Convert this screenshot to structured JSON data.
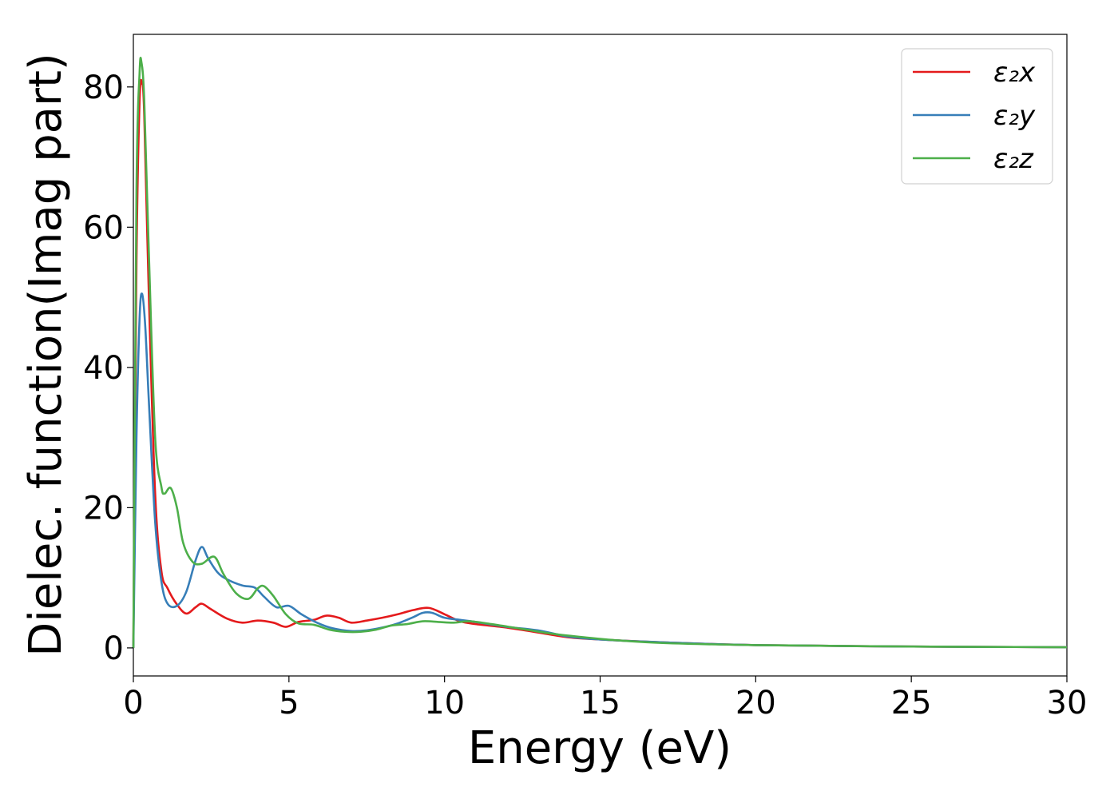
{
  "chart_data": {
    "type": "line",
    "title": "",
    "xlabel": "Energy (eV)",
    "ylabel": "Dielec. function(Imag part)",
    "xlim": [
      0,
      30
    ],
    "ylim": [
      -4,
      87.5
    ],
    "xticks": [
      0,
      5,
      10,
      15,
      20,
      25,
      30
    ],
    "yticks": [
      0,
      20,
      40,
      60,
      80
    ],
    "grid": false,
    "legend": "top-right",
    "series": [
      {
        "name": "ε₂x",
        "color": "#e41a1c",
        "x": [
          0,
          0.1,
          0.2,
          0.28,
          0.35,
          0.5,
          0.7,
          0.9,
          1.1,
          1.4,
          1.7,
          2.0,
          2.2,
          2.5,
          3.0,
          3.5,
          4.0,
          4.5,
          4.9,
          5.3,
          5.8,
          6.2,
          6.6,
          7.0,
          7.5,
          8.0,
          8.5,
          9.0,
          9.5,
          10.0,
          10.5,
          11.0,
          12.0,
          13.0,
          14.0,
          15.0,
          17.0,
          20.0,
          25.0,
          30.0
        ],
        "values": [
          0,
          55,
          78,
          80.5,
          76,
          50,
          22,
          11,
          8.5,
          6.2,
          4.9,
          5.8,
          6.3,
          5.5,
          4.2,
          3.6,
          3.9,
          3.6,
          3.0,
          3.7,
          4.0,
          4.6,
          4.3,
          3.6,
          3.9,
          4.3,
          4.8,
          5.4,
          5.7,
          4.8,
          3.8,
          3.4,
          2.9,
          2.2,
          1.5,
          1.2,
          0.8,
          0.4,
          0.2,
          0.1
        ]
      },
      {
        "name": "ε₂y",
        "color": "#377eb8",
        "x": [
          0,
          0.1,
          0.2,
          0.28,
          0.38,
          0.5,
          0.7,
          0.9,
          1.1,
          1.4,
          1.7,
          2.0,
          2.2,
          2.4,
          2.7,
          3.0,
          3.5,
          3.9,
          4.2,
          4.6,
          5.0,
          5.4,
          5.9,
          6.4,
          7.0,
          7.5,
          8.0,
          8.5,
          9.0,
          9.3,
          9.6,
          10.0,
          10.5,
          11.0,
          12.0,
          13.0,
          14.0,
          15.0,
          17.0,
          20.0,
          25.0,
          30.0
        ],
        "values": [
          0,
          30,
          47,
          50.5,
          46,
          35,
          18,
          9.5,
          6.3,
          6.0,
          8.0,
          12.5,
          14.4,
          12.8,
          10.8,
          9.8,
          8.9,
          8.6,
          7.3,
          5.8,
          6.0,
          4.8,
          3.6,
          2.8,
          2.4,
          2.5,
          2.9,
          3.5,
          4.4,
          5.0,
          5.0,
          4.3,
          4.0,
          3.7,
          3.0,
          2.5,
          1.6,
          1.2,
          0.8,
          0.4,
          0.2,
          0.1
        ]
      },
      {
        "name": "ε₂z",
        "color": "#4daf4a",
        "x": [
          0,
          0.1,
          0.2,
          0.26,
          0.35,
          0.5,
          0.7,
          0.9,
          1.0,
          1.2,
          1.4,
          1.6,
          1.9,
          2.2,
          2.6,
          2.9,
          3.3,
          3.7,
          4.0,
          4.2,
          4.5,
          4.9,
          5.3,
          5.8,
          6.3,
          6.8,
          7.3,
          7.8,
          8.3,
          8.8,
          9.3,
          9.8,
          10.3,
          10.8,
          11.5,
          12.5,
          13.5,
          14.5,
          15.5,
          17.0,
          20.0,
          25.0,
          30.0
        ],
        "values": [
          0,
          65,
          82,
          83.5,
          78,
          56,
          30,
          23,
          22,
          22.8,
          20,
          15,
          12.3,
          12.0,
          13.0,
          10.5,
          7.8,
          7.0,
          8.5,
          8.8,
          7.4,
          4.8,
          3.5,
          3.3,
          2.6,
          2.3,
          2.3,
          2.6,
          3.2,
          3.4,
          3.8,
          3.7,
          3.6,
          3.8,
          3.4,
          2.7,
          2.0,
          1.5,
          1.1,
          0.7,
          0.4,
          0.2,
          0.1
        ]
      }
    ]
  }
}
